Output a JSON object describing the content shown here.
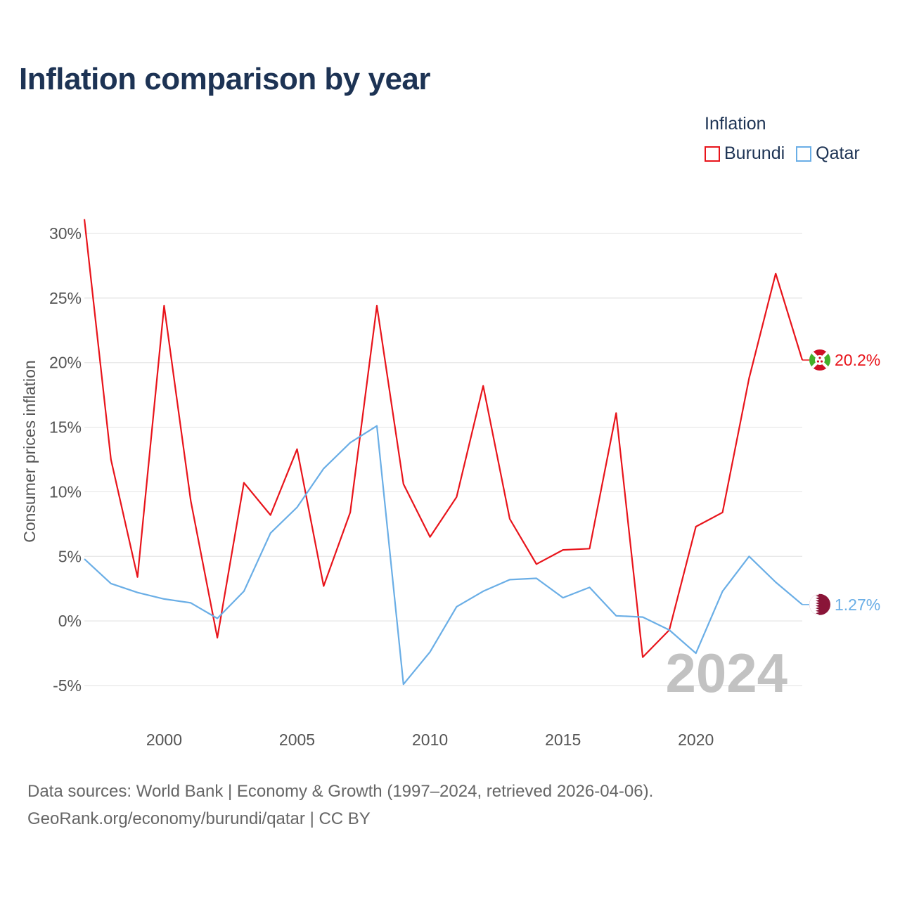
{
  "title": "Inflation comparison by year",
  "legend": {
    "title": "Inflation",
    "items": [
      {
        "label": "Burundi",
        "color": "#e8141b"
      },
      {
        "label": "Qatar",
        "color": "#6aaee6"
      }
    ]
  },
  "year_watermark": "2024",
  "footer": {
    "line1": "Data sources: World Bank | Economy & Growth (1997–2024, retrieved 2026-04-06).",
    "line2": "GeoRank.org/economy/burundi/qatar | CC BY"
  },
  "chart_data": {
    "type": "line",
    "title": "Inflation comparison by year",
    "ylabel": "Consumer prices inflation",
    "xlabel": "",
    "xlim": [
      1997,
      2024
    ],
    "ylim": [
      -5.5,
      31.5
    ],
    "yticks": [
      -5,
      0,
      5,
      10,
      15,
      20,
      25,
      30
    ],
    "ytick_labels": [
      "-5%",
      "0%",
      "5%",
      "10%",
      "15%",
      "20%",
      "25%",
      "30%"
    ],
    "xticks": [
      2000,
      2005,
      2010,
      2015,
      2020
    ],
    "xtick_labels": [
      "2000",
      "2005",
      "2010",
      "2015",
      "2020"
    ],
    "x": [
      1997,
      1998,
      1999,
      2000,
      2001,
      2002,
      2003,
      2004,
      2005,
      2006,
      2007,
      2008,
      2009,
      2010,
      2011,
      2012,
      2013,
      2014,
      2015,
      2016,
      2017,
      2018,
      2019,
      2020,
      2021,
      2022,
      2023,
      2024
    ],
    "series": [
      {
        "name": "Burundi",
        "color": "#e8141b",
        "end_label": "20.2%",
        "flag_icon": "burundi-flag-icon",
        "values": [
          31.1,
          12.5,
          3.4,
          24.4,
          9.3,
          -1.3,
          10.7,
          8.2,
          13.3,
          2.7,
          8.4,
          24.4,
          10.6,
          6.5,
          9.6,
          18.2,
          7.9,
          4.4,
          5.5,
          5.6,
          16.1,
          -2.8,
          -0.7,
          7.3,
          8.4,
          18.8,
          26.9,
          20.2
        ]
      },
      {
        "name": "Qatar",
        "color": "#6aaee6",
        "end_label": "1.27%",
        "flag_icon": "qatar-flag-icon",
        "values": [
          4.8,
          2.9,
          2.2,
          1.7,
          1.4,
          0.2,
          2.3,
          6.8,
          8.8,
          11.8,
          13.8,
          15.1,
          -4.9,
          -2.4,
          1.1,
          2.3,
          3.2,
          3.3,
          1.8,
          2.6,
          0.4,
          0.3,
          -0.7,
          -2.5,
          2.3,
          5.0,
          3.0,
          1.27
        ]
      }
    ],
    "grid": true,
    "legend_position": "top-right"
  }
}
